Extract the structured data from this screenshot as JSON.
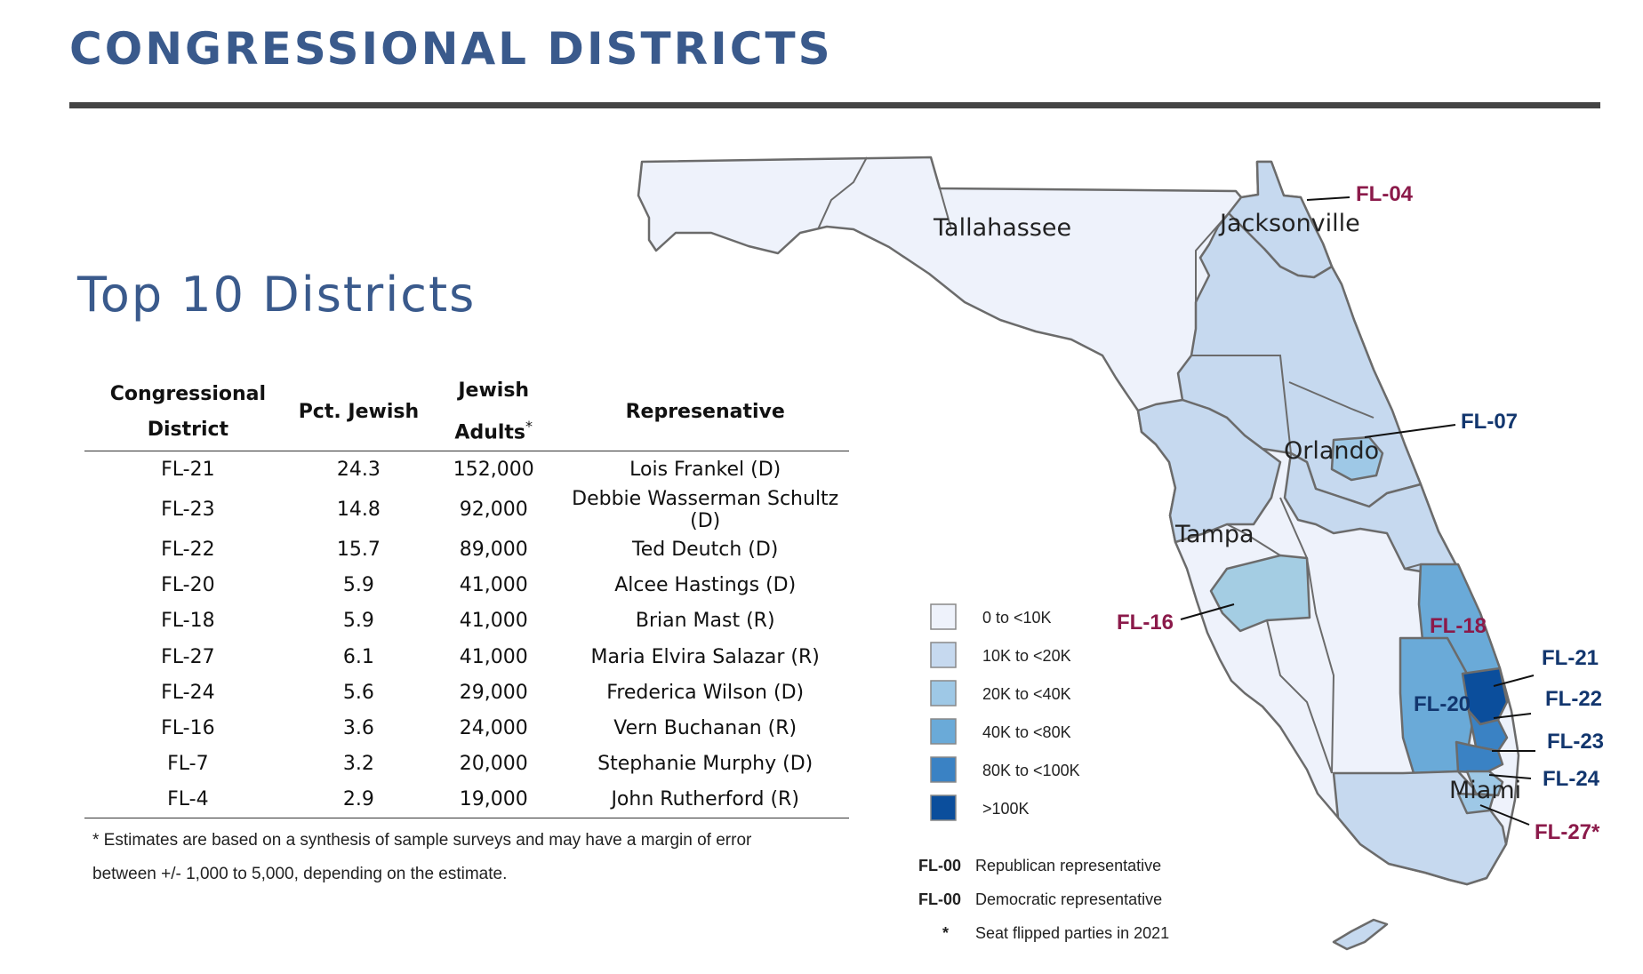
{
  "title": "CONGRESSIONAL DISTRICTS",
  "subtitle": "Top 10 Districts",
  "table": {
    "headers": {
      "district_l1": "Congressional",
      "district_l2": "District",
      "pct": "Pct. Jewish",
      "adults_l1": "Jewish",
      "adults_l2": "Adults",
      "adults_mark": "*",
      "rep": "Represenative"
    },
    "rows": [
      {
        "district": "FL-21",
        "pct": "24.3",
        "adults": "152,000",
        "rep": "Lois Frankel (D)"
      },
      {
        "district": "FL-23",
        "pct": "14.8",
        "adults": "92,000",
        "rep": "Debbie Wasserman Schultz (D)"
      },
      {
        "district": "FL-22",
        "pct": "15.7",
        "adults": "89,000",
        "rep": "Ted Deutch (D)"
      },
      {
        "district": "FL-20",
        "pct": "5.9",
        "adults": "41,000",
        "rep": "Alcee Hastings (D)"
      },
      {
        "district": "FL-18",
        "pct": "5.9",
        "adults": "41,000",
        "rep": "Brian Mast (R)"
      },
      {
        "district": "FL-27",
        "pct": "6.1",
        "adults": "41,000",
        "rep": "Maria Elvira Salazar (R)"
      },
      {
        "district": "FL-24",
        "pct": "5.6",
        "adults": "29,000",
        "rep": "Frederica Wilson (D)"
      },
      {
        "district": "FL-16",
        "pct": "3.6",
        "adults": "24,000",
        "rep": "Vern Buchanan (R)"
      },
      {
        "district": "FL-7",
        "pct": "3.2",
        "adults": "20,000",
        "rep": "Stephanie Murphy (D)"
      },
      {
        "district": "FL-4",
        "pct": "2.9",
        "adults": "19,000",
        "rep": "John Rutherford (R)"
      }
    ]
  },
  "footnote": {
    "line1": "* Estimates are based on a synthesis of sample surveys and may have a margin of error",
    "line2": "between +/- 1,000 to 5,000, depending on the estimate."
  },
  "map": {
    "cities": {
      "tallahassee": "Tallahassee",
      "jacksonville": "Jacksonville",
      "orlando": "Orlando",
      "tampa": "Tampa",
      "miami": "Miami"
    },
    "district_labels": {
      "fl04": "FL-04",
      "fl07": "FL-07",
      "fl16": "FL-16",
      "fl18": "FL-18",
      "fl20": "FL-20",
      "fl21": "FL-21",
      "fl22": "FL-22",
      "fl23": "FL-23",
      "fl24": "FL-24",
      "fl27": "FL-27*"
    },
    "legend": {
      "bins": [
        {
          "label": "0 to <10K",
          "color": "#eef2fb"
        },
        {
          "label": "10K to <20K",
          "color": "#c6d9ef"
        },
        {
          "label": "20K to <40K",
          "color": "#9ec8e6"
        },
        {
          "label": "40K to <80K",
          "color": "#6aaad8"
        },
        {
          "label": "80K to <100K",
          "color": "#3a82c4"
        },
        {
          "label": ">100K",
          "color": "#0b4e9c"
        }
      ],
      "party": {
        "rep_code": "FL-00",
        "rep_label": "Republican representative",
        "dem_code": "FL-00",
        "dem_label": "Democratic representative",
        "flip_mark": "*",
        "flip_label": "Seat flipped parties in 2021"
      }
    },
    "colors": {
      "republican": "#8b1a4a",
      "democratic": "#12366e",
      "border": "#6b6b6b"
    }
  }
}
